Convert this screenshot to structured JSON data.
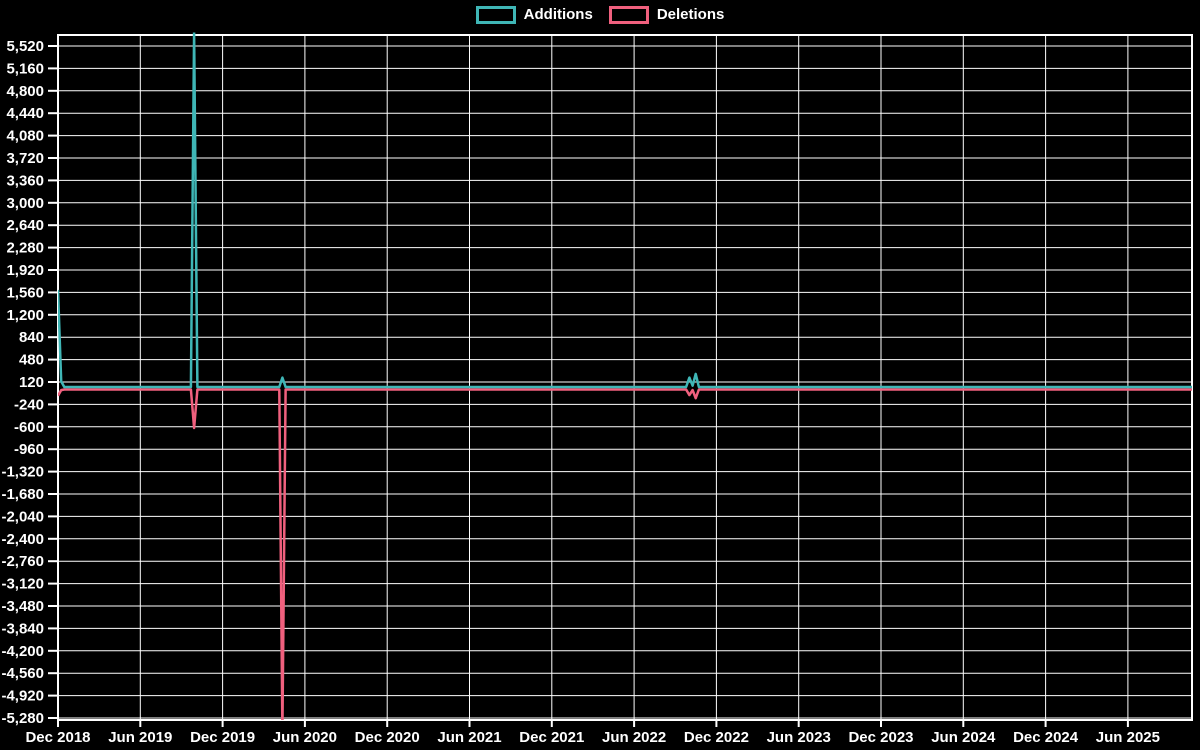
{
  "legend": {
    "items": [
      {
        "label": "Additions",
        "color": "#3fb6b6"
      },
      {
        "label": "Deletions",
        "color": "#f0607e"
      }
    ]
  },
  "chart_data": {
    "type": "line",
    "title": "",
    "legend_position": "top-center",
    "background_color": "#000000",
    "grid": true,
    "grid_color": "#ffffff",
    "axis_text_color": "#ffffff",
    "y_axis": {
      "tick_step": 360,
      "visible_range": [
        -5312,
        5700
      ],
      "tick_values": [
        5520,
        5160,
        4800,
        4440,
        4080,
        3720,
        3360,
        3000,
        2640,
        2280,
        1920,
        1560,
        1200,
        840,
        480,
        120,
        -240,
        -600,
        -960,
        -1320,
        -1680,
        -2040,
        -2400,
        -2760,
        -3120,
        -3480,
        -3840,
        -4200,
        -4560,
        -4920,
        -5280
      ],
      "tick_labels": [
        "5,520",
        "5,160",
        "4,800",
        "4,440",
        "4,080",
        "3,720",
        "3,360",
        "3,000",
        "2,640",
        "2,280",
        "1,920",
        "1,560",
        "1,200",
        "840",
        "480",
        "120",
        "-240",
        "-600",
        "-960",
        "-1,320",
        "-1,680",
        "-2,040",
        "-2,400",
        "-2,760",
        "-3,120",
        "-3,480",
        "-3,840",
        "-4,200",
        "-4,560",
        "-4,920",
        "-5,280"
      ]
    },
    "x_axis": {
      "tick_dates": [
        "2018-12-01",
        "2019-06-01",
        "2019-12-01",
        "2020-06-01",
        "2020-12-01",
        "2021-06-01",
        "2021-12-01",
        "2022-06-01",
        "2022-12-01",
        "2023-06-01",
        "2023-12-01",
        "2024-06-01",
        "2024-12-01",
        "2025-06-01"
      ],
      "tick_labels": [
        "Dec 2018",
        "Jun 2019",
        "Dec 2019",
        "Jun 2020",
        "Dec 2020",
        "Jun 2021",
        "Dec 2021",
        "Jun 2022",
        "Dec 2022",
        "Jun 2023",
        "Dec 2023",
        "Jun 2024",
        "Dec 2024",
        "Jun 2025"
      ]
    },
    "series": [
      {
        "name": "Additions",
        "color": "#3fb6b6",
        "points": [
          [
            "2018-12-01",
            1560
          ],
          [
            "2018-12-08",
            90
          ],
          [
            "2018-12-15",
            0
          ],
          [
            "2019-09-22",
            0
          ],
          [
            "2019-09-29",
            5700
          ],
          [
            "2019-10-06",
            0
          ],
          [
            "2020-04-05",
            0
          ],
          [
            "2020-04-12",
            150
          ],
          [
            "2020-04-19",
            0
          ],
          [
            "2022-09-25",
            0
          ],
          [
            "2022-10-02",
            150
          ],
          [
            "2022-10-09",
            20
          ],
          [
            "2022-10-16",
            210
          ],
          [
            "2022-10-23",
            0
          ],
          [
            "2025-10-25",
            0
          ]
        ]
      },
      {
        "name": "Deletions",
        "color": "#f0607e",
        "points": [
          [
            "2018-12-01",
            -100
          ],
          [
            "2018-12-08",
            -10
          ],
          [
            "2018-12-15",
            0
          ],
          [
            "2019-09-22",
            0
          ],
          [
            "2019-09-29",
            -620
          ],
          [
            "2019-10-06",
            0
          ],
          [
            "2020-04-05",
            0
          ],
          [
            "2020-04-12",
            -5500
          ],
          [
            "2020-04-19",
            0
          ],
          [
            "2022-09-25",
            0
          ],
          [
            "2022-10-02",
            -90
          ],
          [
            "2022-10-09",
            -10
          ],
          [
            "2022-10-16",
            -140
          ],
          [
            "2022-10-23",
            0
          ],
          [
            "2025-10-25",
            0
          ]
        ]
      }
    ]
  }
}
